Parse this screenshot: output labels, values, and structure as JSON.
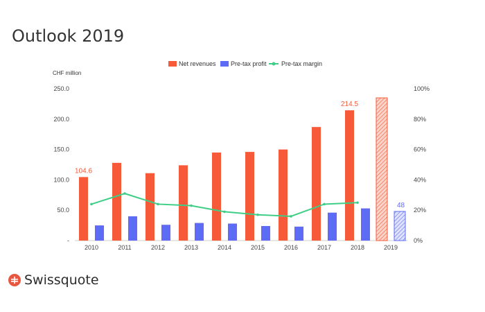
{
  "slide": {
    "title": "Outlook 2019"
  },
  "brand": {
    "name": "Swissquote",
    "color": "#e8573f"
  },
  "chart_data": {
    "type": "bar",
    "title": "",
    "y_unit": "CHF million",
    "categories": [
      "2010",
      "2011",
      "2012",
      "2013",
      "2014",
      "2015",
      "2016",
      "2017",
      "2018",
      "2019"
    ],
    "series": [
      {
        "name": "Net revenues",
        "kind": "bar",
        "axis": "left",
        "color": "#f65a38",
        "values": [
          104.6,
          128,
          111,
          124,
          145,
          146,
          150,
          187,
          214.5,
          235
        ]
      },
      {
        "name": "Pre-tax profit",
        "kind": "bar",
        "axis": "left",
        "color": "#5d6bf5",
        "values": [
          25,
          40,
          26,
          29,
          28,
          24,
          23,
          46,
          53,
          48
        ]
      },
      {
        "name": "Pre-tax margin",
        "kind": "line",
        "axis": "right",
        "color": "#3ecf86",
        "values": [
          24,
          31,
          24,
          23,
          19,
          17,
          16,
          24,
          25,
          null
        ]
      }
    ],
    "forecast_category": "2019",
    "data_labels": [
      {
        "series": "Net revenues",
        "category": "2010",
        "text": "104.6"
      },
      {
        "series": "Net revenues",
        "category": "2018",
        "text": "214.5"
      },
      {
        "series": "Pre-tax profit",
        "category": "2019",
        "text": "48"
      }
    ],
    "y_left": {
      "range": [
        0,
        250
      ],
      "ticks": [
        0,
        50,
        100,
        150,
        200,
        250
      ],
      "tick_labels": [
        "-",
        "50.0",
        "100.0",
        "150.0",
        "200.0",
        "250.0"
      ]
    },
    "y_right": {
      "range": [
        0,
        100
      ],
      "ticks": [
        0,
        20,
        40,
        60,
        80,
        100
      ],
      "tick_labels": [
        "0%",
        "20%",
        "40%",
        "60%",
        "80%",
        "100%"
      ]
    },
    "legend_position": "top",
    "grid": false
  }
}
